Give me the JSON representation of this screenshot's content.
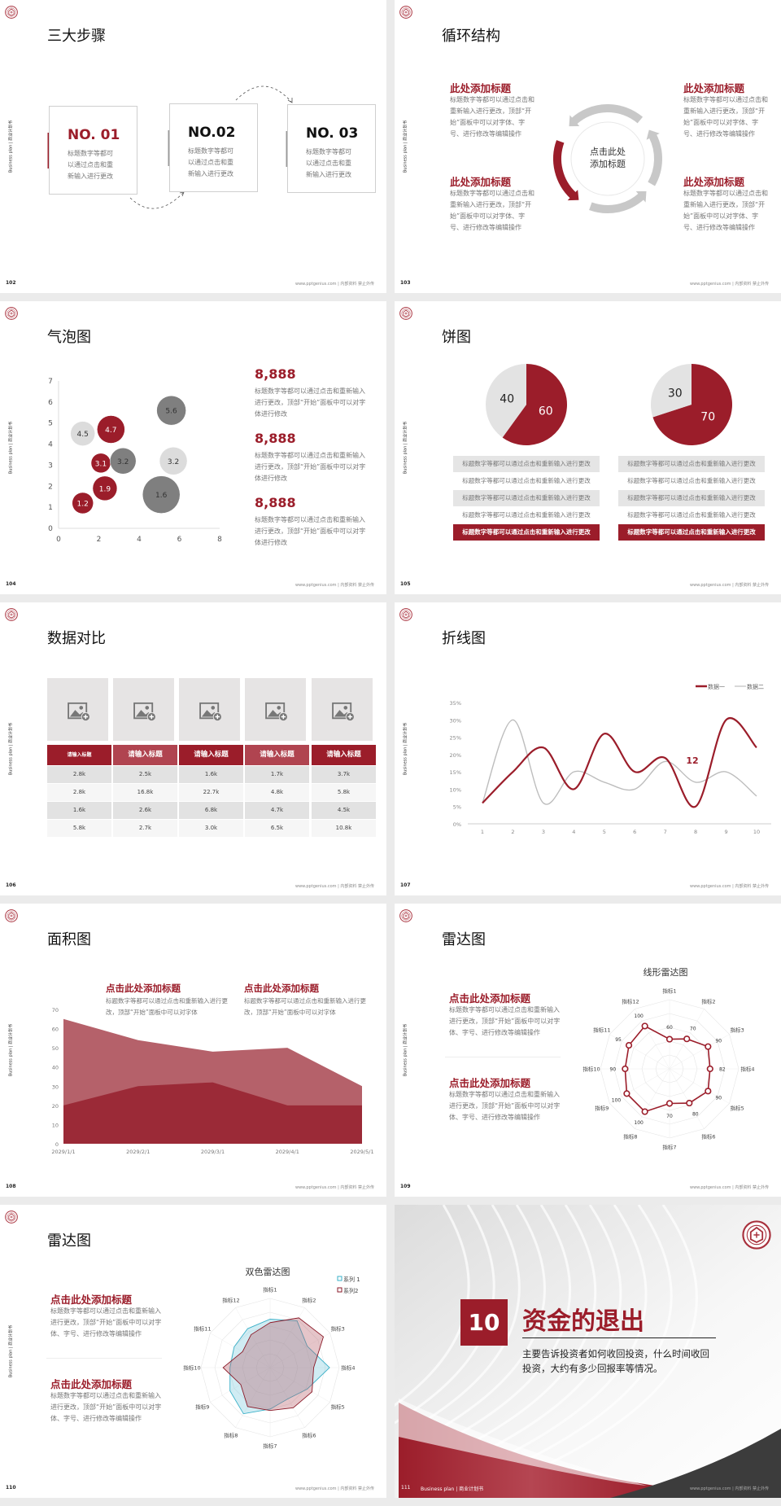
{
  "common": {
    "side_label": "Business plan | 商业计划书",
    "footer": "www.pptgenius.com | 内部资料 禁止外传"
  },
  "colors": {
    "accent": "#9b1d2a",
    "accent_light": "#b5616a",
    "light_gray": "#dcdcdc",
    "dark_gray": "#808080",
    "cyan": "#3ab0c8"
  },
  "s102": {
    "page": "102",
    "title": "三大步骤",
    "steps": [
      {
        "label": "NO. 01",
        "text": "标题数字等都可以通过点击和重新输入进行更改",
        "active": true
      },
      {
        "label": "NO.02",
        "text": "标题数字等都可以通过点击和重新输入进行更改",
        "active": false
      },
      {
        "label": "NO. 03",
        "text": "标题数字等都可以通过点击和重新输入进行更改",
        "active": false
      }
    ]
  },
  "s103": {
    "page": "103",
    "title": "循环结构",
    "center": "点击此处添加标题",
    "items": [
      {
        "heading": "此处添加标题",
        "text": "标题数字等都可以通过点击和重新输入进行更改，顶部“开始”面板中可以对字体、字号、进行修改等编辑操作"
      },
      {
        "heading": "此处添加标题",
        "text": "标题数字等都可以通过点击和重新输入进行更改，顶部“开始”面板中可以对字体、字号、进行修改等编辑操作"
      },
      {
        "heading": "此处添加标题",
        "text": "标题数字等都可以通过点击和重新输入进行更改，顶部“开始”面板中可以对字体、字号、进行修改等编辑操作"
      },
      {
        "heading": "此处添加标题",
        "text": "标题数字等都可以通过点击和重新输入进行更改，顶部“开始”面板中可以对字体、字号、进行修改等编辑操作"
      }
    ]
  },
  "s104": {
    "page": "104",
    "title": "气泡图",
    "stats": [
      {
        "value": "8,888",
        "text": "标题数字等都可以通过点击和重新输入进行更改，顶部“开始”面板中可以对字体进行修改"
      },
      {
        "value": "8,888",
        "text": "标题数字等都可以通过点击和重新输入进行更改，顶部“开始”面板中可以对字体进行修改"
      },
      {
        "value": "8,888",
        "text": "标题数字等都可以通过点击和重新输入进行更改，顶部“开始”面板中可以对字体进行修改"
      }
    ]
  },
  "s105": {
    "page": "105",
    "title": "饼图",
    "rows_left": [
      "标题数字等都可以通过点击和重新输入进行更改",
      "标题数字等都可以通过点击和重新输入进行更改",
      "标题数字等都可以通过点击和重新输入进行更改",
      "标题数字等都可以通过点击和重新输入进行更改",
      "标题数字等都可以通过点击和重新输入进行更改"
    ],
    "rows_right": [
      "标题数字等都可以通过点击和重新输入进行更改",
      "标题数字等都可以通过点击和重新输入进行更改",
      "标题数字等都可以通过点击和重新输入进行更改",
      "标题数字等都可以通过点击和重新输入进行更改",
      "标题数字等都可以通过点击和重新输入进行更改"
    ]
  },
  "s106": {
    "page": "106",
    "title": "数据对比",
    "headers": [
      "请输入标题",
      "请输入标题",
      "请输入标题",
      "请输入标题",
      "请输入标题"
    ],
    "rows": [
      [
        "2.8k",
        "2.5k",
        "1.6k",
        "1.7k",
        "3.7k"
      ],
      [
        "2.8k",
        "16.8k",
        "22.7k",
        "4.8k",
        "5.8k"
      ],
      [
        "1.6k",
        "2.6k",
        "6.8k",
        "4.7k",
        "4.5k"
      ],
      [
        "5.8k",
        "2.7k",
        "3.0k",
        "6.5k",
        "10.8k"
      ]
    ]
  },
  "s107": {
    "page": "107",
    "title": "折线图",
    "annotation": "12"
  },
  "s108": {
    "page": "108",
    "title": "面积图",
    "items": [
      {
        "heading": "点击此处添加标题",
        "text": "标题数字等都可以通过点击和重新输入进行更改，顶部“开始”面板中可以对字体"
      },
      {
        "heading": "点击此处添加标题",
        "text": "标题数字等都可以通过点击和重新输入进行更改，顶部“开始”面板中可以对字体"
      }
    ]
  },
  "s109": {
    "page": "109",
    "title": "雷达图",
    "items": [
      {
        "heading": "点击此处添加标题",
        "text": "标题数字等都可以通过点击和重新输入进行更改，顶部“开始”面板中可以对字体、字号、进行修改等编辑操作"
      },
      {
        "heading": "点击此处添加标题",
        "text": "标题数字等都可以通过点击和重新输入进行更改，顶部“开始”面板中可以对字体、字号、进行修改等编辑操作"
      }
    ]
  },
  "s110": {
    "page": "110",
    "title": "雷达图",
    "items": [
      {
        "heading": "点击此处添加标题",
        "text": "标题数字等都可以通过点击和重新输入进行更改，顶部“开始”面板中可以对字体、字号、进行修改等编辑操作"
      },
      {
        "heading": "点击此处添加标题",
        "text": "标题数字等都可以通过点击和重新输入进行更改，顶部“开始”面板中可以对字体、字号、进行修改等编辑操作"
      }
    ]
  },
  "s111": {
    "page": "111",
    "number": "10",
    "title": "资金的退出",
    "text": "主要告诉投资者如何收回投资，什么时间收回投资，大约有多少回报率等情况。",
    "footer_label": "Business plan | 商业计划书"
  },
  "chart_data": [
    {
      "id": "bubble",
      "type": "scatter",
      "xlim": [
        0,
        8
      ],
      "ylim": [
        0,
        7
      ],
      "xticks": [
        "0",
        "2",
        "4",
        "6",
        "8"
      ],
      "yticks": [
        "0",
        "1",
        "2",
        "3",
        "4",
        "5",
        "6",
        "7"
      ],
      "points": [
        {
          "x": 1.2,
          "y": 4.5,
          "size": 1.5,
          "label": "4.5",
          "color": "light"
        },
        {
          "x": 2.6,
          "y": 4.7,
          "size": 1.7,
          "label": "4.7",
          "color": "accent"
        },
        {
          "x": 2.1,
          "y": 3.1,
          "size": 1.2,
          "label": "3.1",
          "color": "accent"
        },
        {
          "x": 3.2,
          "y": 3.2,
          "size": 1.6,
          "label": "3.2",
          "color": "dark"
        },
        {
          "x": 5.6,
          "y": 5.6,
          "size": 1.8,
          "label": "5.6",
          "color": "dark"
        },
        {
          "x": 5.7,
          "y": 3.2,
          "size": 1.7,
          "label": "3.2",
          "color": "light"
        },
        {
          "x": 5.1,
          "y": 1.6,
          "size": 2.3,
          "label": "1.6",
          "color": "dark"
        },
        {
          "x": 2.3,
          "y": 1.9,
          "size": 1.5,
          "label": "1.9",
          "color": "accent"
        },
        {
          "x": 1.2,
          "y": 1.2,
          "size": 1.3,
          "label": "1.2",
          "color": "accent"
        }
      ]
    },
    {
      "id": "pie1",
      "type": "pie",
      "values": [
        60,
        40
      ],
      "labels": [
        "60",
        "40"
      ]
    },
    {
      "id": "pie2",
      "type": "pie",
      "values": [
        70,
        30
      ],
      "labels": [
        "70",
        "30"
      ]
    },
    {
      "id": "line",
      "type": "line",
      "x": [
        "1",
        "2",
        "3",
        "4",
        "5",
        "6",
        "7",
        "8",
        "9",
        "10"
      ],
      "yticks": [
        "0%",
        "5%",
        "10%",
        "15%",
        "20%",
        "25%",
        "30%",
        "35%"
      ],
      "ylim": [
        0,
        35
      ],
      "legend": "top-right",
      "series": [
        {
          "name": "数据一",
          "values": [
            6,
            15,
            22,
            10,
            26,
            15,
            19,
            5,
            30,
            22
          ]
        },
        {
          "name": "数据二",
          "values": [
            6,
            30,
            6,
            15,
            12,
            10,
            18,
            12,
            15,
            8
          ]
        }
      ]
    },
    {
      "id": "area",
      "type": "area",
      "categories": [
        "2029/1/1",
        "2029/2/1",
        "2029/3/1",
        "2029/4/1",
        "2029/5/1"
      ],
      "yticks": [
        "0",
        "10",
        "20",
        "30",
        "40",
        "50",
        "60",
        "70"
      ],
      "ylim": [
        0,
        70
      ],
      "series": [
        {
          "values": [
            65,
            54,
            48,
            50,
            30
          ]
        },
        {
          "values": [
            20,
            30,
            32,
            20,
            20
          ]
        }
      ]
    },
    {
      "id": "radar1",
      "type": "radar",
      "title": "线形雷达图",
      "rlim": [
        0,
        140
      ],
      "axes": [
        "指标1",
        "指标2",
        "指标3",
        "指标4",
        "指标5",
        "指标6",
        "指标7",
        "指标8",
        "指标9",
        "指标10",
        "指标11",
        "指标12"
      ],
      "series": [
        {
          "values": [
            60,
            70,
            90,
            82,
            90,
            80,
            70,
            100,
            100,
            90,
            95,
            100
          ]
        }
      ]
    },
    {
      "id": "radar2",
      "type": "radar",
      "title": "双色雷达图",
      "rlim": [
        0,
        100
      ],
      "legend": "top-right",
      "axes": [
        "指标1",
        "指标2",
        "指标3",
        "指标4",
        "指标5",
        "指标6",
        "指标7",
        "指标8",
        "指标9",
        "指标10",
        "指标11",
        "指标12"
      ],
      "series": [
        {
          "name": "系列 1",
          "values": [
            70,
            78,
            62,
            86,
            62,
            52,
            60,
            77,
            67,
            58,
            60,
            65
          ]
        },
        {
          "name": "系列2",
          "values": [
            65,
            83,
            89,
            63,
            70,
            67,
            62,
            65,
            49,
            68,
            46,
            55
          ]
        }
      ]
    }
  ]
}
